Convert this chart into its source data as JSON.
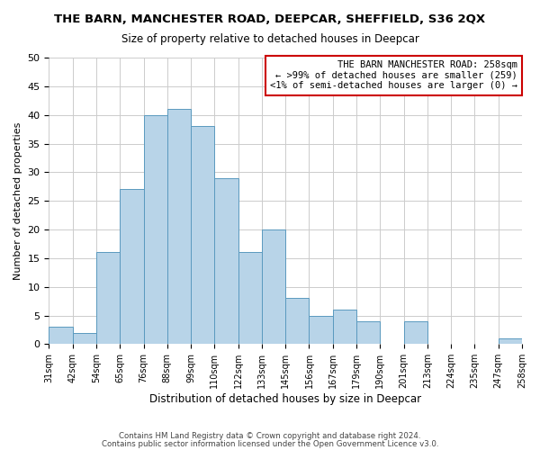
{
  "title": "THE BARN, MANCHESTER ROAD, DEEPCAR, SHEFFIELD, S36 2QX",
  "subtitle": "Size of property relative to detached houses in Deepcar",
  "xlabel": "Distribution of detached houses by size in Deepcar",
  "ylabel": "Number of detached properties",
  "tick_labels": [
    "31sqm",
    "42sqm",
    "54sqm",
    "65sqm",
    "76sqm",
    "88sqm",
    "99sqm",
    "110sqm",
    "122sqm",
    "133sqm",
    "145sqm",
    "156sqm",
    "167sqm",
    "179sqm",
    "190sqm",
    "201sqm",
    "213sqm",
    "224sqm",
    "235sqm",
    "247sqm",
    "258sqm"
  ],
  "bar_values": [
    3,
    2,
    16,
    27,
    40,
    41,
    38,
    29,
    16,
    20,
    8,
    5,
    6,
    4,
    0,
    4,
    0,
    0,
    0,
    1
  ],
  "bar_color": "#b8d4e8",
  "bar_edge_color": "#5a9abf",
  "legend_title": "THE BARN MANCHESTER ROAD: 258sqm",
  "legend_line1": "← >99% of detached houses are smaller (259)",
  "legend_line2": "<1% of semi-detached houses are larger (0) →",
  "legend_border_color": "#cc0000",
  "ylim": [
    0,
    50
  ],
  "yticks": [
    0,
    5,
    10,
    15,
    20,
    25,
    30,
    35,
    40,
    45,
    50
  ],
  "footnote1": "Contains HM Land Registry data © Crown copyright and database right 2024.",
  "footnote2": "Contains public sector information licensed under the Open Government Licence v3.0.",
  "bg_color": "#ffffff",
  "grid_color": "#cccccc"
}
